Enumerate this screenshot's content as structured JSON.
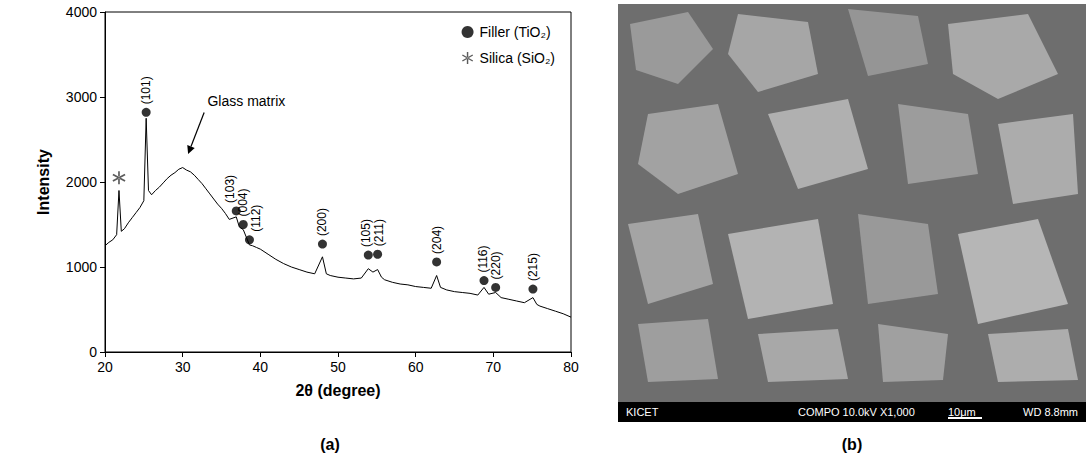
{
  "chart_data": {
    "type": "line",
    "caption": "(a)",
    "xlabel": "2θ (degree)",
    "ylabel": "Intensity",
    "color": "#000000",
    "x": [
      20,
      20.5,
      21,
      21.5,
      21.8,
      22.1,
      22.5,
      23,
      23.5,
      24,
      24.5,
      25,
      25.3,
      25.6,
      26,
      26.5,
      27,
      27.5,
      28,
      28.5,
      29,
      29.5,
      30,
      30.5,
      31,
      31.5,
      32,
      32.5,
      33,
      33.5,
      34,
      34.5,
      35,
      35.5,
      36,
      36.9,
      37.3,
      37.8,
      38.2,
      38.6,
      39,
      39.5,
      40,
      41,
      42,
      43,
      44,
      45,
      46,
      47,
      48,
      48.5,
      49,
      50,
      51,
      52,
      53,
      53.9,
      54.5,
      55.1,
      55.6,
      56,
      57,
      58,
      59,
      60,
      61,
      62,
      62.7,
      63.2,
      64,
      65,
      66,
      67,
      68,
      68.8,
      69.4,
      70.3,
      71,
      72,
      73,
      74,
      75.1,
      75.6,
      76,
      77,
      78,
      79,
      80
    ],
    "values": [
      1250,
      1290,
      1320,
      1380,
      1900,
      1420,
      1450,
      1520,
      1580,
      1640,
      1700,
      1780,
      2750,
      1900,
      1850,
      1900,
      1940,
      1990,
      2040,
      2080,
      2110,
      2150,
      2170,
      2140,
      2120,
      2080,
      2030,
      1980,
      1920,
      1860,
      1800,
      1740,
      1690,
      1630,
      1560,
      1590,
      1470,
      1440,
      1350,
      1260,
      1250,
      1230,
      1210,
      1150,
      1090,
      1040,
      1000,
      970,
      940,
      920,
      1120,
      920,
      900,
      880,
      870,
      860,
      870,
      980,
      940,
      970,
      880,
      850,
      820,
      800,
      790,
      770,
      760,
      750,
      900,
      760,
      730,
      710,
      700,
      690,
      670,
      760,
      680,
      700,
      640,
      620,
      600,
      580,
      640,
      560,
      540,
      510,
      480,
      450,
      410
    ],
    "xlim": [
      20,
      80
    ],
    "xticks": [
      20,
      30,
      40,
      50,
      60,
      70,
      80
    ],
    "ylim": [
      0,
      4000
    ],
    "yticks": [
      0,
      1000,
      2000,
      3000,
      4000
    ],
    "grid": false,
    "legend": "upper right",
    "series": [
      {
        "name": "Filler (TiO₂)",
        "type": "scatter",
        "marker": "circle",
        "color": "#000000",
        "x": [
          25.3,
          36.9,
          37.8,
          38.6,
          48.0,
          53.9,
          55.1,
          62.7,
          68.8,
          70.3,
          75.1
        ],
        "values": [
          2820,
          1660,
          1500,
          1320,
          1270,
          1140,
          1150,
          1060,
          840,
          760,
          740
        ],
        "labels": [
          "(101)",
          "(103)",
          "(004)",
          "(112)",
          "(200)",
          "(105)",
          "(211)",
          "(204)",
          "(116)",
          "(220)",
          "(215)"
        ]
      },
      {
        "name": "Silica (SiO₂)",
        "type": "scatter",
        "marker": "asterisk",
        "color": "#333333",
        "x": [
          21.8
        ],
        "values": [
          2050
        ]
      }
    ],
    "annotations": [
      {
        "text": "Glass matrix",
        "x": 38.2,
        "y": 2950,
        "arrow_to": [
          30.7,
          2330
        ]
      }
    ]
  },
  "micrograph": {
    "caption": "(b)",
    "footer": {
      "left": "KICET",
      "middle": "COMPO  10.0kV  X1,000",
      "scale_bar": "10μm",
      "right": "WD 8.8mm"
    }
  }
}
